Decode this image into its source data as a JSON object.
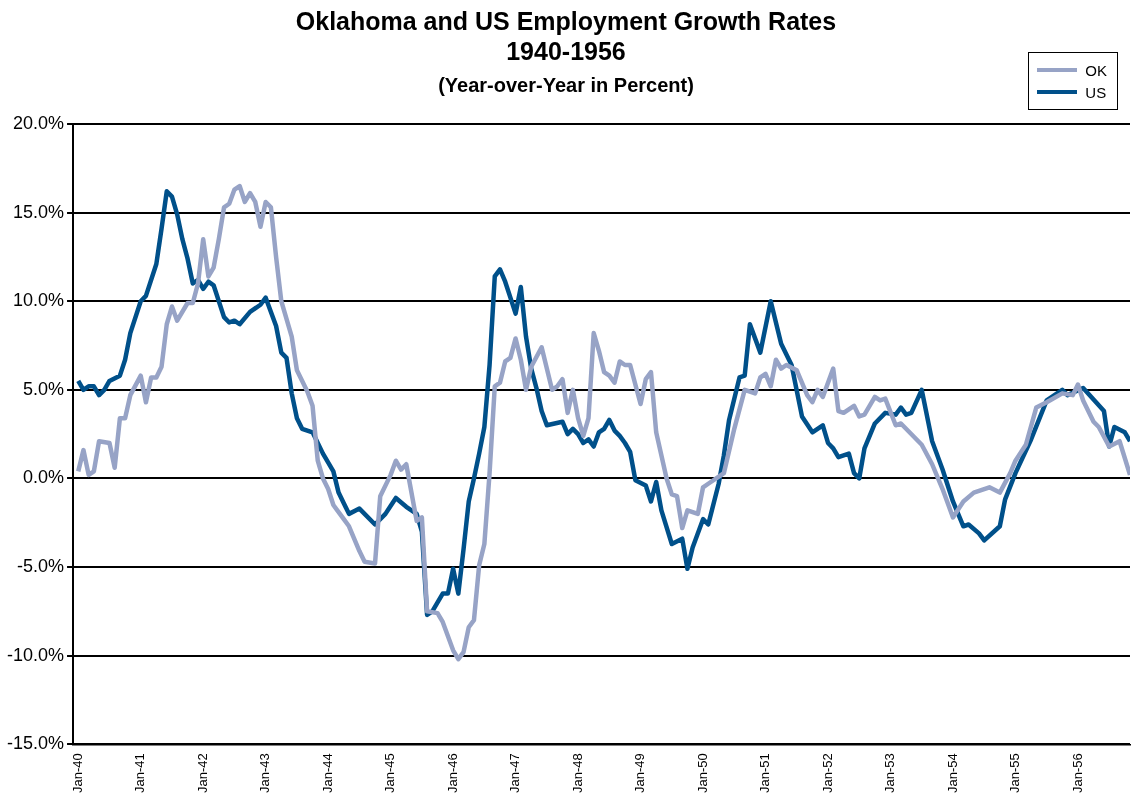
{
  "chart_data": {
    "type": "line",
    "title": "Oklahoma and US Employment Growth Rates 1940-1956",
    "subtitle": "(Year-over-Year in Percent)",
    "xlim": [
      "1939-12",
      "1956-11"
    ],
    "xticks": [
      {
        "value": "1940-01",
        "label": "Jan-40"
      },
      {
        "value": "1941-01",
        "label": "Jan-41"
      },
      {
        "value": "1942-01",
        "label": "Jan-42"
      },
      {
        "value": "1943-01",
        "label": "Jan-43"
      },
      {
        "value": "1944-01",
        "label": "Jan-44"
      },
      {
        "value": "1945-01",
        "label": "Jan-45"
      },
      {
        "value": "1946-01",
        "label": "Jan-46"
      },
      {
        "value": "1947-01",
        "label": "Jan-47"
      },
      {
        "value": "1948-01",
        "label": "Jan-48"
      },
      {
        "value": "1949-01",
        "label": "Jan-49"
      },
      {
        "value": "1950-01",
        "label": "Jan-50"
      },
      {
        "value": "1951-01",
        "label": "Jan-51"
      },
      {
        "value": "1952-01",
        "label": "Jan-52"
      },
      {
        "value": "1953-01",
        "label": "Jan-53"
      },
      {
        "value": "1954-01",
        "label": "Jan-54"
      },
      {
        "value": "1955-01",
        "label": "Jan-55"
      },
      {
        "value": "1956-01",
        "label": "Jan-56"
      }
    ],
    "ylim": [
      -15,
      20
    ],
    "yticks": [
      {
        "value": -15,
        "label": "-15.0%"
      },
      {
        "value": -10,
        "label": "-10.0%"
      },
      {
        "value": -5,
        "label": "-5.0%"
      },
      {
        "value": 0,
        "label": "0.0%"
      },
      {
        "value": 5,
        "label": "5.0%"
      },
      {
        "value": 10,
        "label": "10.0%"
      },
      {
        "value": 15,
        "label": "15.0%"
      },
      {
        "value": 20,
        "label": "20.0%"
      }
    ],
    "grid": "y",
    "legend": "top right",
    "line_style": "solid",
    "series": [
      {
        "name": "OK",
        "color": "#97a3c6",
        "x": [
          "1940-01",
          "1940-02",
          "1940-03",
          "1940-04",
          "1940-05",
          "1940-07",
          "1940-08",
          "1940-09",
          "1940-10",
          "1940-11",
          "1941-01",
          "1941-02",
          "1941-03",
          "1941-04",
          "1941-05",
          "1941-06",
          "1941-07",
          "1941-08",
          "1941-10",
          "1941-11",
          "1941-12",
          "1942-01",
          "1942-02",
          "1942-03",
          "1942-04",
          "1942-05",
          "1942-06",
          "1942-07",
          "1942-08",
          "1942-09",
          "1942-10",
          "1942-11",
          "1942-12",
          "1943-01",
          "1943-02",
          "1943-03",
          "1943-04",
          "1943-06",
          "1943-07",
          "1943-09",
          "1943-10",
          "1943-11",
          "1943-12",
          "1944-01",
          "1944-02",
          "1944-04",
          "1944-05",
          "1944-07",
          "1944-08",
          "1944-10",
          "1944-11",
          "1945-01",
          "1945-02",
          "1945-03",
          "1945-04",
          "1945-06",
          "1945-07",
          "1945-08",
          "1945-10",
          "1945-11",
          "1946-01",
          "1946-02",
          "1946-03",
          "1946-04",
          "1946-05",
          "1946-06",
          "1946-07",
          "1946-08",
          "1946-09",
          "1946-10",
          "1946-11",
          "1946-12",
          "1947-01",
          "1947-02",
          "1947-03",
          "1947-04",
          "1947-06",
          "1947-08",
          "1947-09",
          "1947-10",
          "1947-11",
          "1947-12",
          "1948-01",
          "1948-02",
          "1948-03",
          "1948-04",
          "1948-05",
          "1948-06",
          "1948-07",
          "1948-08",
          "1948-09",
          "1948-10",
          "1948-11",
          "1949-01",
          "1949-02",
          "1949-03",
          "1949-04",
          "1949-06",
          "1949-07",
          "1949-08",
          "1949-09",
          "1949-10",
          "1949-12",
          "1950-01",
          "1950-02",
          "1950-05",
          "1950-07",
          "1950-09",
          "1950-11",
          "1950-12",
          "1951-01",
          "1951-02",
          "1951-03",
          "1951-04",
          "1951-05",
          "1951-07",
          "1951-09",
          "1951-10",
          "1951-11",
          "1951-12",
          "1952-02",
          "1952-03",
          "1952-04",
          "1952-06",
          "1952-07",
          "1952-08",
          "1952-10",
          "1952-11",
          "1952-12",
          "1953-02",
          "1953-03",
          "1953-07",
          "1953-09",
          "1953-11",
          "1954-01",
          "1954-03",
          "1954-05",
          "1954-06",
          "1954-08",
          "1954-10",
          "1954-12",
          "1955-01",
          "1955-03",
          "1955-05",
          "1955-07",
          "1955-10",
          "1955-12",
          "1956-01",
          "1956-02",
          "1956-04",
          "1956-05",
          "1956-07",
          "1956-09",
          "1956-11"
        ],
        "values": [
          0.4,
          1.6,
          0.2,
          0.4,
          2.1,
          2.0,
          0.6,
          3.4,
          3.4,
          4.7,
          5.8,
          4.3,
          5.7,
          5.7,
          6.3,
          8.7,
          9.7,
          8.9,
          9.9,
          9.9,
          11.0,
          13.5,
          11.4,
          11.9,
          13.5,
          15.3,
          15.5,
          16.3,
          16.5,
          15.6,
          16.1,
          15.6,
          14.2,
          15.6,
          15.3,
          12.5,
          10.0,
          8.0,
          6.1,
          4.9,
          4.1,
          1.0,
          0.0,
          -0.6,
          -1.5,
          -2.3,
          -2.7,
          -4.1,
          -4.7,
          -4.8,
          -1.0,
          0.2,
          1.0,
          0.5,
          0.8,
          -2.4,
          -2.2,
          -7.5,
          -7.6,
          -8.1,
          -9.7,
          -10.2,
          -9.8,
          -8.4,
          -8.0,
          -4.9,
          -3.7,
          0.3,
          5.2,
          5.4,
          6.6,
          6.8,
          7.9,
          6.7,
          5.0,
          6.3,
          7.4,
          5.0,
          5.2,
          5.6,
          3.7,
          5.0,
          3.4,
          2.4,
          3.4,
          8.2,
          7.2,
          6.0,
          5.8,
          5.4,
          6.6,
          6.4,
          6.4,
          4.2,
          5.6,
          6.0,
          2.6,
          0.0,
          -0.9,
          -1.0,
          -2.8,
          -1.8,
          -2.0,
          -0.5,
          -0.3,
          0.3,
          2.8,
          5.0,
          4.8,
          5.7,
          5.9,
          5.2,
          6.7,
          6.2,
          6.4,
          6.1,
          4.7,
          4.3,
          5.0,
          4.6,
          6.2,
          3.8,
          3.7,
          4.1,
          3.5,
          3.6,
          4.6,
          4.4,
          4.5,
          3.0,
          3.1,
          1.9,
          0.8,
          -0.6,
          -2.2,
          -1.3,
          -0.8,
          -0.7,
          -0.5,
          -0.8,
          0.3,
          1.0,
          1.9,
          4.0,
          4.3,
          4.8,
          4.7,
          5.3,
          4.4,
          3.2,
          2.9,
          1.8,
          2.1,
          0.2
        ]
      },
      {
        "name": "US",
        "color": "#00508a",
        "x": [
          "1940-01",
          "1940-02",
          "1940-03",
          "1940-04",
          "1940-05",
          "1940-06",
          "1940-07",
          "1940-09",
          "1940-10",
          "1940-11",
          "1941-01",
          "1941-02",
          "1941-04",
          "1941-05",
          "1941-06",
          "1941-07",
          "1941-08",
          "1941-09",
          "1941-10",
          "1941-11",
          "1941-12",
          "1942-01",
          "1942-02",
          "1942-03",
          "1942-05",
          "1942-06",
          "1942-07",
          "1942-08",
          "1942-10",
          "1942-12",
          "1943-01",
          "1943-03",
          "1943-04",
          "1943-05",
          "1943-06",
          "1943-07",
          "1943-08",
          "1943-10",
          "1943-12",
          "1944-02",
          "1944-03",
          "1944-04",
          "1944-05",
          "1944-07",
          "1944-10",
          "1944-12",
          "1945-02",
          "1945-04",
          "1945-06",
          "1945-07",
          "1945-08",
          "1945-09",
          "1945-11",
          "1945-12",
          "1946-01",
          "1946-02",
          "1946-03",
          "1946-04",
          "1946-05",
          "1946-06",
          "1946-07",
          "1946-08",
          "1946-09",
          "1946-10",
          "1946-11",
          "1946-12",
          "1947-01",
          "1947-02",
          "1947-03",
          "1947-04",
          "1947-05",
          "1947-06",
          "1947-07",
          "1947-10",
          "1947-11",
          "1947-12",
          "1948-01",
          "1948-02",
          "1948-03",
          "1948-04",
          "1948-05",
          "1948-06",
          "1948-07",
          "1948-08",
          "1948-09",
          "1948-10",
          "1948-11",
          "1948-12",
          "1949-02",
          "1949-03",
          "1949-04",
          "1949-05",
          "1949-07",
          "1949-09",
          "1949-10",
          "1949-11",
          "1950-01",
          "1950-02",
          "1950-04",
          "1950-05",
          "1950-06",
          "1950-08",
          "1950-09",
          "1950-10",
          "1950-12",
          "1951-02",
          "1951-04",
          "1951-06",
          "1951-08",
          "1951-10",
          "1951-12",
          "1952-01",
          "1952-02",
          "1952-03",
          "1952-05",
          "1952-06",
          "1952-07",
          "1952-08",
          "1952-10",
          "1952-12",
          "1953-02",
          "1953-03",
          "1953-04",
          "1953-05",
          "1953-07",
          "1953-09",
          "1953-11",
          "1954-01",
          "1954-03",
          "1954-04",
          "1954-06",
          "1954-07",
          "1954-10",
          "1954-11",
          "1955-01",
          "1955-04",
          "1955-07",
          "1955-10",
          "1955-11",
          "1956-02",
          "1956-06",
          "1956-07",
          "1956-08",
          "1956-10",
          "1956-11"
        ],
        "values": [
          5.5,
          5.0,
          5.2,
          5.2,
          4.7,
          5.0,
          5.5,
          5.8,
          6.7,
          8.2,
          10.0,
          10.3,
          12.1,
          14.1,
          16.2,
          15.9,
          14.9,
          13.5,
          12.4,
          11.0,
          11.2,
          10.7,
          11.1,
          10.9,
          9.1,
          8.8,
          8.9,
          8.7,
          9.4,
          9.8,
          10.2,
          8.6,
          7.1,
          6.8,
          4.8,
          3.4,
          2.8,
          2.6,
          1.4,
          0.4,
          -0.8,
          -1.4,
          -2.0,
          -1.7,
          -2.6,
          -2.0,
          -1.1,
          -1.6,
          -2.0,
          -3.0,
          -7.7,
          -7.5,
          -6.5,
          -6.5,
          -5.1,
          -6.5,
          -4.0,
          -1.3,
          0.0,
          1.4,
          2.9,
          6.4,
          11.4,
          11.8,
          11.1,
          10.2,
          9.3,
          10.8,
          8.0,
          6.2,
          5.1,
          3.8,
          3.0,
          3.2,
          2.5,
          2.8,
          2.5,
          2.0,
          2.2,
          1.8,
          2.6,
          2.8,
          3.3,
          2.7,
          2.4,
          2.0,
          1.5,
          -0.1,
          -0.4,
          -1.3,
          -0.2,
          -1.8,
          -3.7,
          -3.4,
          -5.1,
          -3.9,
          -2.3,
          -2.6,
          -0.3,
          1.3,
          3.3,
          5.7,
          5.8,
          8.7,
          7.1,
          10.0,
          7.6,
          6.4,
          3.5,
          2.6,
          3.0,
          2.0,
          1.7,
          1.2,
          1.4,
          0.3,
          0.0,
          1.7,
          3.1,
          3.7,
          3.6,
          4.0,
          3.6,
          3.7,
          5.0,
          2.1,
          0.5,
          -1.3,
          -2.7,
          -2.6,
          -3.1,
          -3.5,
          -2.7,
          -1.2,
          0.3,
          2.2,
          4.4,
          5.0,
          4.7,
          5.1,
          3.8,
          1.8,
          2.9,
          2.6,
          2.1
        ]
      }
    ]
  }
}
